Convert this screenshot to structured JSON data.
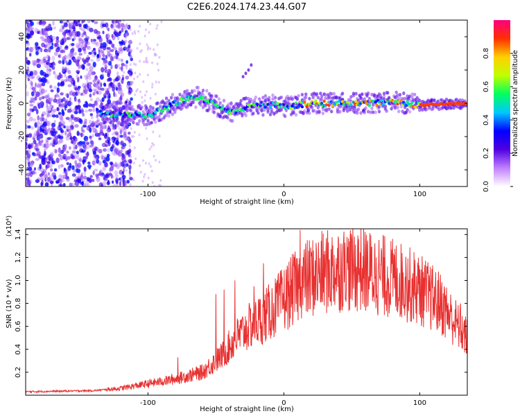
{
  "title": "C2E6.2024.174.23.44.G07",
  "chart_data": [
    {
      "type": "heatmap",
      "xlabel": "Height of straight line (km)",
      "ylabel": "Frequency (Hz)",
      "xlim": [
        -190,
        135
      ],
      "ylim": [
        -50,
        50
      ],
      "x_ticks": [
        -100,
        0,
        100
      ],
      "y_ticks": [
        -40,
        -20,
        0,
        20,
        40
      ],
      "colorbar": {
        "label": "Normalized spectral amplitude",
        "range": [
          0.0,
          1.0
        ],
        "ticks": [
          "0.0",
          "0.2",
          "0.4",
          "0.6",
          "0.8"
        ],
        "colors": [
          "#ffffff",
          "#c080ff",
          "#5000e0",
          "#0000ff",
          "#00c8ff",
          "#00ff60",
          "#c0ff00",
          "#ffd000",
          "#ff3000",
          "#ff0080"
        ]
      },
      "ridge": {
        "x": [
          -135,
          -120,
          -100,
          -90,
          -80,
          -70,
          -62,
          -55,
          -45,
          -38,
          -30,
          -20,
          -10,
          0,
          20,
          40,
          60,
          80,
          100,
          135
        ],
        "y": [
          -6,
          -7,
          -7,
          -4,
          0,
          3,
          4,
          1,
          -4,
          -5,
          -3,
          -1,
          -1,
          -2,
          0,
          0,
          0,
          1,
          -1,
          0
        ]
      },
      "noise_region_x": [
        -190,
        -120
      ],
      "scattered_points": {
        "x": [
          -30,
          -28,
          -26,
          -24
        ],
        "y": [
          16,
          18,
          20,
          23
        ]
      }
    },
    {
      "type": "line",
      "xlabel": "Height of straight line (km)",
      "ylabel": "SNR (10 * v/v)",
      "y_scale_label": "(x10⁴)",
      "xlim": [
        -190,
        135
      ],
      "ylim": [
        0,
        1.45
      ],
      "x_ticks": [
        -100,
        0,
        100
      ],
      "y_ticks": [
        "0.2",
        "0.4",
        "0.6",
        "0.8",
        "1.0",
        "1.2",
        "1.4"
      ],
      "color": "#e83030",
      "envelope": {
        "x": [
          -190,
          -140,
          -120,
          -100,
          -80,
          -60,
          -45,
          -35,
          -25,
          -15,
          -5,
          5,
          15,
          25,
          40,
          55,
          70,
          85,
          100,
          115,
          125,
          135
        ],
        "y": [
          0.03,
          0.04,
          0.06,
          0.1,
          0.14,
          0.2,
          0.35,
          0.5,
          0.6,
          0.68,
          0.78,
          0.9,
          1.0,
          1.05,
          1.1,
          1.1,
          1.05,
          1.0,
          0.92,
          0.8,
          0.65,
          0.5
        ]
      },
      "peaks": {
        "x": [
          -78,
          -50,
          -44,
          -36,
          -22,
          -15,
          12,
          32,
          45,
          55,
          68,
          90,
          115,
          130
        ],
        "y": [
          0.33,
          0.88,
          0.92,
          1.0,
          0.95,
          1.15,
          1.44,
          1.3,
          1.33,
          1.36,
          1.2,
          1.1,
          0.9,
          0.8
        ]
      }
    }
  ]
}
